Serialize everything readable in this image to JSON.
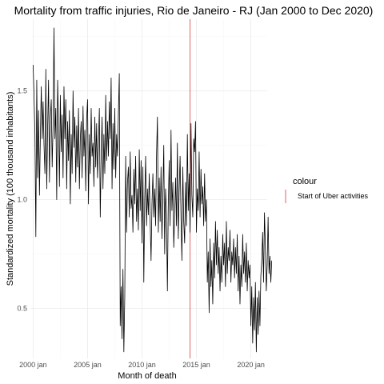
{
  "chart_data": {
    "type": "line",
    "title": "Mortality from traffic injuries, Rio de Janeiro - RJ (Jan 2000 to Dec 2020)",
    "xlabel": "Month of death",
    "ylabel": "Standardized mortality (100 thousand inhabitants)",
    "x_range": [
      "2000-01",
      "2020-12"
    ],
    "xlim": [
      "1999-10",
      "2021-07"
    ],
    "ylim": [
      0.27,
      1.83
    ],
    "x_ticks": [
      "2000 jan",
      "2005 jan",
      "2010 jan",
      "2015 jan",
      "2020 jan"
    ],
    "y_ticks": [
      "0.5",
      "1.0",
      "1.5"
    ],
    "grid": true,
    "legend": {
      "title": "colour",
      "placement": "right",
      "entries": [
        {
          "label": "Start of Uber activities",
          "color": "#d9534f"
        }
      ]
    },
    "vline": {
      "x": "2014-06",
      "label": "Start of Uber activities",
      "color": "#d9534f"
    },
    "series": [
      {
        "color": "#000000",
        "values": [
          1.62,
          1.48,
          1.3,
          0.83,
          1.55,
          1.1,
          1.41,
          1.02,
          1.3,
          1.52,
          1.28,
          1.45,
          1.25,
          1.12,
          1.6,
          1.05,
          1.33,
          1.55,
          1.08,
          1.38,
          1.46,
          1.15,
          1.34,
          1.79,
          1.28,
          1.42,
          1.0,
          1.55,
          1.35,
          1.06,
          1.48,
          1.22,
          1.39,
          1.1,
          1.52,
          1.28,
          1.46,
          1.05,
          1.36,
          1.18,
          1.41,
          0.98,
          1.3,
          1.12,
          1.5,
          1.24,
          1.38,
          1.08,
          1.34,
          1.15,
          1.42,
          1.05,
          1.28,
          1.36,
          1.1,
          1.43,
          1.2,
          1.32,
          1.04,
          1.37,
          1.46,
          0.98,
          1.3,
          1.12,
          1.42,
          1.2,
          1.26,
          1.06,
          1.38,
          1.15,
          1.35,
          1.1,
          1.25,
          1.42,
          0.92,
          1.2,
          1.38,
          1.05,
          1.3,
          1.12,
          1.48,
          1.18,
          1.36,
          1.2,
          1.45,
          1.28,
          1.56,
          1.05,
          1.35,
          1.14,
          1.42,
          1.1,
          1.3,
          1.2,
          1.4,
          1.58,
          0.42,
          0.6,
          0.36,
          0.68,
          0.3,
          0.55,
          1.2,
          0.85,
          1.08,
          1.15,
          0.92,
          1.22,
          0.96,
          1.02,
          0.85,
          1.14,
          0.98,
          1.2,
          0.9,
          1.05,
          0.86,
          1.23,
          0.95,
          1.18,
          0.8,
          1.15,
          0.62,
          1.0,
          1.2,
          0.88,
          1.05,
          0.93,
          1.12,
          0.9,
          0.72,
          0.98,
          1.12,
          0.92,
          1.05,
          0.88,
          1.2,
          1.38,
          0.85,
          1.1,
          0.9,
          1.15,
          0.82,
          1.02,
          1.25,
          0.75,
          1.05,
          0.93,
          0.58,
          0.98,
          1.18,
          0.88,
          1.32,
          0.95,
          1.08,
          0.78,
          0.93,
          1.1,
          0.88,
          1.26,
          0.82,
          1.05,
          1.2,
          0.92,
          0.72,
          1.15,
          0.9,
          0.8,
          1.08,
          0.88,
          1.3,
          0.95,
          1.12,
          0.85,
          1.35,
          1.02,
          0.92,
          1.28,
          1.22,
          1.36,
          0.85,
          1.05,
          0.95,
          1.22,
          0.92,
          1.14,
          0.98,
          1.06,
          0.88,
          1.12,
          0.9,
          1.0,
          0.62,
          0.76,
          0.48,
          0.82,
          0.6,
          0.72,
          0.52,
          0.8,
          0.64,
          0.9,
          0.7,
          0.86,
          0.66,
          0.78,
          0.58,
          0.74,
          0.62,
          0.84,
          0.7,
          0.8,
          0.6,
          0.9,
          0.66,
          0.78,
          0.72,
          0.86,
          0.62,
          0.76,
          0.7,
          0.82,
          0.64,
          0.78,
          0.66,
          0.84,
          0.58,
          0.74,
          0.52,
          0.7,
          0.6,
          0.84,
          0.66,
          0.76,
          0.62,
          0.8,
          0.58,
          0.72,
          0.64,
          0.7,
          0.42,
          0.6,
          0.34,
          0.55,
          0.4,
          0.62,
          0.3,
          0.55,
          0.38,
          0.58,
          0.42,
          0.65,
          0.72,
          0.85,
          0.62,
          0.94,
          0.78,
          0.58,
          0.7,
          0.92,
          0.66,
          0.74,
          0.62,
          0.72
        ]
      }
    ]
  }
}
